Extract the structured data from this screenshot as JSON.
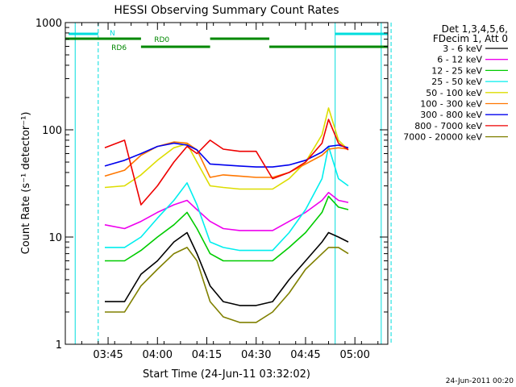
{
  "chart_data": {
    "type": "line",
    "title": "HESSI Observing Summary Count Rates",
    "xlabel": "Start Time (24-Jun-11 03:32:02)",
    "ylabel": "Count Rate (s⁻¹ detector⁻¹)",
    "y_scale": "log",
    "ylim": [
      1,
      1000
    ],
    "xlim": [
      "03:32",
      "05:10"
    ],
    "x_ticks": [
      "03:45",
      "04:00",
      "04:15",
      "04:30",
      "04:45",
      "05:00"
    ],
    "y_ticks": [
      "1",
      "10",
      "100",
      "1000"
    ],
    "grid": false,
    "legend_position": "right",
    "legend_header": [
      "Det 1,3,4,5,6,",
      "FDecim 1, Att 0"
    ],
    "footer_date": "24-Jun-2011 00:20",
    "flag_labels": {
      "night": "N",
      "rd0": "RD0",
      "rd6": "RD6"
    },
    "colors": {
      "3-6": "#000000",
      "6-12": "#ee00ee",
      "12-25": "#00cc00",
      "25-50": "#00eeee",
      "50-100": "#dddd00",
      "100-300": "#ff7700",
      "300-800": "#0000ee",
      "800-7000": "#ee0000",
      "7000-20000": "#808000",
      "flag_night": "#00dddd",
      "flag_rd": "#008800"
    },
    "series": [
      {
        "name": "3 - 6 keV",
        "key": "3-6",
        "x": [
          "03:44",
          "03:50",
          "03:55",
          "04:00",
          "04:05",
          "04:09",
          "04:12",
          "04:16",
          "04:20",
          "04:25",
          "04:30",
          "04:35",
          "04:40",
          "04:45",
          "04:50",
          "04:52",
          "04:55",
          "04:58"
        ],
        "y": [
          2.5,
          2.5,
          4.5,
          6,
          9,
          11,
          7,
          3.5,
          2.5,
          2.3,
          2.3,
          2.5,
          4,
          6,
          9,
          11,
          10,
          9
        ]
      },
      {
        "name": "6 - 12 keV",
        "key": "6-12",
        "x": [
          "03:44",
          "03:50",
          "03:55",
          "04:00",
          "04:05",
          "04:09",
          "04:12",
          "04:16",
          "04:20",
          "04:25",
          "04:30",
          "04:35",
          "04:40",
          "04:45",
          "04:50",
          "04:52",
          "04:55",
          "04:58"
        ],
        "y": [
          13,
          12,
          14,
          17,
          20,
          22,
          18,
          14,
          12,
          11.5,
          11.5,
          11.5,
          14,
          17,
          22,
          26,
          22,
          21
        ]
      },
      {
        "name": "12 - 25 keV",
        "key": "12-25",
        "x": [
          "03:44",
          "03:50",
          "03:55",
          "04:00",
          "04:05",
          "04:09",
          "04:12",
          "04:16",
          "04:20",
          "04:25",
          "04:30",
          "04:35",
          "04:40",
          "04:45",
          "04:50",
          "04:52",
          "04:55",
          "04:58"
        ],
        "y": [
          6,
          6,
          7.5,
          10,
          13,
          17,
          12,
          7,
          6,
          6,
          6,
          6,
          8,
          11,
          17,
          24,
          19,
          18
        ]
      },
      {
        "name": "25 - 50 keV",
        "key": "25-50",
        "x": [
          "03:44",
          "03:50",
          "03:55",
          "04:00",
          "04:05",
          "04:09",
          "04:12",
          "04:16",
          "04:20",
          "04:25",
          "04:30",
          "04:35",
          "04:40",
          "04:45",
          "04:50",
          "04:52",
          "04:55",
          "04:58"
        ],
        "y": [
          8,
          8,
          10,
          15,
          22,
          32,
          20,
          9,
          8,
          7.5,
          7.5,
          7.5,
          11,
          18,
          35,
          70,
          35,
          30
        ]
      },
      {
        "name": "50 - 100 keV",
        "key": "50-100",
        "x": [
          "03:44",
          "03:50",
          "03:55",
          "04:00",
          "04:05",
          "04:09",
          "04:12",
          "04:16",
          "04:20",
          "04:25",
          "04:30",
          "04:35",
          "04:40",
          "04:45",
          "04:50",
          "04:52",
          "04:55",
          "04:58"
        ],
        "y": [
          29,
          30,
          38,
          52,
          68,
          74,
          50,
          30,
          29,
          28,
          28,
          28,
          35,
          50,
          90,
          160,
          80,
          65
        ]
      },
      {
        "name": "100 - 300 keV",
        "key": "100-300",
        "x": [
          "03:44",
          "03:50",
          "03:55",
          "04:00",
          "04:05",
          "04:09",
          "04:12",
          "04:16",
          "04:20",
          "04:25",
          "04:30",
          "04:35",
          "04:40",
          "04:45",
          "04:50",
          "04:52",
          "04:55",
          "04:58"
        ],
        "y": [
          37,
          42,
          58,
          70,
          77,
          75,
          65,
          36,
          38,
          37,
          36,
          36,
          40,
          48,
          58,
          66,
          68,
          66
        ]
      },
      {
        "name": "300 - 800 keV",
        "key": "300-800",
        "x": [
          "03:44",
          "03:50",
          "03:55",
          "04:00",
          "04:05",
          "04:09",
          "04:12",
          "04:16",
          "04:20",
          "04:25",
          "04:30",
          "04:35",
          "04:40",
          "04:45",
          "04:50",
          "04:52",
          "04:55",
          "04:58"
        ],
        "y": [
          46,
          52,
          60,
          70,
          75,
          72,
          65,
          48,
          47,
          46,
          45,
          45,
          47,
          52,
          62,
          70,
          72,
          68
        ]
      },
      {
        "name": "800 - 7000 keV",
        "key": "800-7000",
        "x": [
          "03:44",
          "03:50",
          "03:55",
          "04:00",
          "04:05",
          "04:09",
          "04:12",
          "04:16",
          "04:20",
          "04:25",
          "04:30",
          "04:35",
          "04:40",
          "04:45",
          "04:50",
          "04:52",
          "04:55",
          "04:58"
        ],
        "y": [
          68,
          80,
          20,
          30,
          50,
          70,
          60,
          80,
          66,
          63,
          63,
          35,
          40,
          50,
          75,
          125,
          75,
          65
        ]
      },
      {
        "name": "7000 - 20000 keV",
        "key": "7000-20000",
        "x": [
          "03:44",
          "03:50",
          "03:55",
          "04:00",
          "04:05",
          "04:09",
          "04:12",
          "04:16",
          "04:20",
          "04:25",
          "04:30",
          "04:35",
          "04:40",
          "04:45",
          "04:50",
          "04:52",
          "04:55",
          "04:58"
        ],
        "y": [
          2,
          2,
          3.5,
          5,
          7,
          8,
          6,
          2.5,
          1.8,
          1.6,
          1.6,
          2,
          3,
          5,
          7,
          8,
          8,
          7
        ]
      }
    ]
  }
}
